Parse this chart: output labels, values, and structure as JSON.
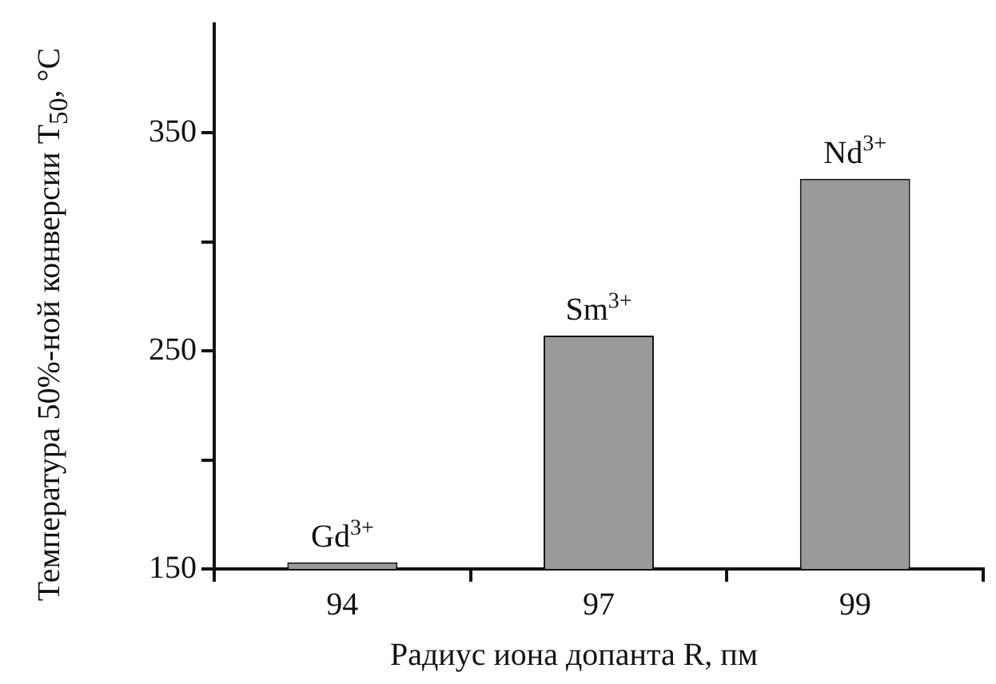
{
  "chart_data": {
    "type": "bar",
    "xlabel": "Радиус иона допанта R, пм",
    "ylabel": "Температура 50%-ной конверсии T$_{50}$, °C",
    "categories": [
      "94",
      "97",
      "99"
    ],
    "values": [
      153,
      257,
      329
    ],
    "color": "#9a9a9a",
    "ylim": [
      150,
      400
    ],
    "yticks": [
      150,
      {
        "value": 200,
        "label": null
      },
      250,
      {
        "value": 300,
        "label": null
      },
      350
    ],
    "grid": false,
    "legend": false,
    "annotations": [
      {
        "text": "Gd$^{3+}$",
        "x": "94",
        "y": 153
      },
      {
        "text": "Sm$^{3+}$",
        "x": "97",
        "y": 257
      },
      {
        "text": "Nd$^{3+}$",
        "x": "99",
        "y": 329
      }
    ]
  }
}
